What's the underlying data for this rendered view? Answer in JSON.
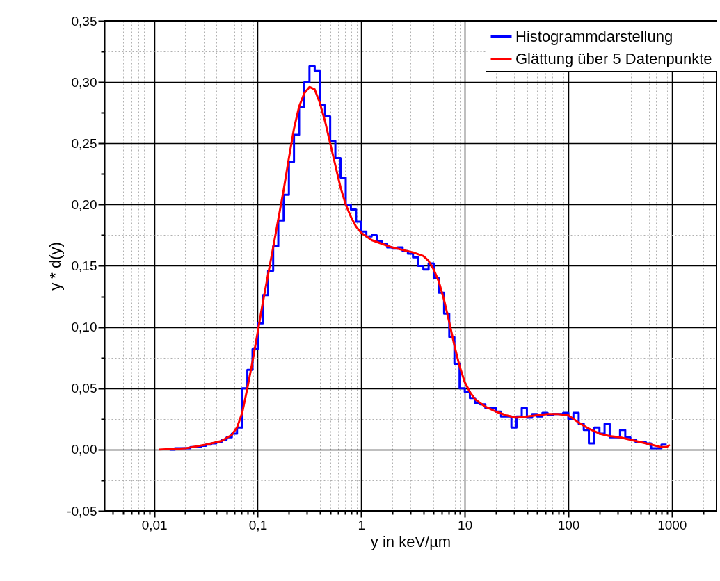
{
  "chart_data": {
    "type": "line",
    "xlabel": "y in keV/µm",
    "ylabel": "y * d(y)",
    "log": "x",
    "grid": true,
    "legend": "top right",
    "xlim": [
      0.0033,
      2700
    ],
    "ylim": [
      -0.05,
      0.35
    ],
    "xticks": [
      {
        "value": 0.004,
        "label": null
      },
      {
        "value": 0.005,
        "label": null
      },
      {
        "value": 0.006,
        "label": null
      },
      {
        "value": 0.007,
        "label": null
      },
      {
        "value": 0.008,
        "label": null
      },
      {
        "value": 0.009,
        "label": null
      },
      {
        "value": 0.01,
        "label": "0,01"
      },
      {
        "value": 0.02,
        "label": null
      },
      {
        "value": 0.03,
        "label": null
      },
      {
        "value": 0.04,
        "label": null
      },
      {
        "value": 0.05,
        "label": null
      },
      {
        "value": 0.06,
        "label": null
      },
      {
        "value": 0.07,
        "label": null
      },
      {
        "value": 0.08,
        "label": null
      },
      {
        "value": 0.09,
        "label": null
      },
      {
        "value": 0.1,
        "label": "0,1"
      },
      {
        "value": 0.2,
        "label": null
      },
      {
        "value": 0.3,
        "label": null
      },
      {
        "value": 0.4,
        "label": null
      },
      {
        "value": 0.5,
        "label": null
      },
      {
        "value": 0.6,
        "label": null
      },
      {
        "value": 0.7,
        "label": null
      },
      {
        "value": 0.8,
        "label": null
      },
      {
        "value": 0.9,
        "label": null
      },
      1,
      {
        "value": 2,
        "label": null
      },
      {
        "value": 3,
        "label": null
      },
      {
        "value": 4,
        "label": null
      },
      {
        "value": 5,
        "label": null
      },
      {
        "value": 6,
        "label": null
      },
      {
        "value": 7,
        "label": null
      },
      {
        "value": 8,
        "label": null
      },
      {
        "value": 9,
        "label": null
      },
      10,
      {
        "value": 20,
        "label": null
      },
      {
        "value": 30,
        "label": null
      },
      {
        "value": 40,
        "label": null
      },
      {
        "value": 50,
        "label": null
      },
      {
        "value": 60,
        "label": null
      },
      {
        "value": 70,
        "label": null
      },
      {
        "value": 80,
        "label": null
      },
      {
        "value": 90,
        "label": null
      },
      100,
      {
        "value": 200,
        "label": null
      },
      {
        "value": 300,
        "label": null
      },
      {
        "value": 400,
        "label": null
      },
      {
        "value": 500,
        "label": null
      },
      {
        "value": 600,
        "label": null
      },
      {
        "value": 700,
        "label": null
      },
      {
        "value": 800,
        "label": null
      },
      {
        "value": 900,
        "label": null
      },
      1000,
      {
        "value": 2000,
        "label": null
      }
    ],
    "yticks": [
      {
        "value": -0.05,
        "label": "-0,05"
      },
      {
        "value": -0.025,
        "label": null
      },
      {
        "value": 0,
        "label": "0,00"
      },
      {
        "value": 0.025,
        "label": null
      },
      {
        "value": 0.05,
        "label": "0,05"
      },
      {
        "value": 0.075,
        "label": null
      },
      {
        "value": 0.1,
        "label": "0,10"
      },
      {
        "value": 0.125,
        "label": null
      },
      {
        "value": 0.15,
        "label": "0,15"
      },
      {
        "value": 0.175,
        "label": null
      },
      {
        "value": 0.2,
        "label": "0,20"
      },
      {
        "value": 0.225,
        "label": null
      },
      {
        "value": 0.25,
        "label": "0,25"
      },
      {
        "value": 0.275,
        "label": null
      },
      {
        "value": 0.3,
        "label": "0,30"
      },
      {
        "value": 0.325,
        "label": null
      },
      {
        "value": 0.35,
        "label": "0,35"
      }
    ],
    "series": [
      {
        "name": "Histogrammdarstellung",
        "color": "#0000ff",
        "type": "step",
        "x": [
          0.0141,
          0.0158,
          0.0178,
          0.02,
          0.0224,
          0.0251,
          0.0282,
          0.0316,
          0.0355,
          0.0398,
          0.0447,
          0.0501,
          0.0562,
          0.0631,
          0.0708,
          0.0794,
          0.0891,
          0.1,
          0.112,
          0.126,
          0.141,
          0.158,
          0.178,
          0.2,
          0.224,
          0.251,
          0.282,
          0.316,
          0.355,
          0.398,
          0.447,
          0.501,
          0.562,
          0.631,
          0.708,
          0.794,
          0.891,
          1,
          1.12,
          1.26,
          1.41,
          1.58,
          1.78,
          2,
          2.24,
          2.51,
          2.82,
          3.16,
          3.55,
          3.98,
          4.47,
          5.01,
          5.62,
          6.31,
          7.08,
          7.94,
          8.91,
          10,
          11.2,
          12.6,
          14.1,
          15.8,
          17.8,
          20,
          22.4,
          25.1,
          28.2,
          31.6,
          35.5,
          39.8,
          44.7,
          50.1,
          56.2,
          63.1,
          70.8,
          79.4,
          89.1,
          100,
          112,
          126,
          141,
          158,
          178,
          200,
          224,
          251,
          282,
          316,
          355,
          398,
          447,
          501,
          562,
          631,
          708,
          794,
          891
        ],
        "values": [
          0,
          0.001,
          0.001,
          0.001,
          0.002,
          0.002,
          0.003,
          0.004,
          0.005,
          0.006,
          0.008,
          0.01,
          0.013,
          0.018,
          0.05,
          0.065,
          0.082,
          0.103,
          0.126,
          0.146,
          0.166,
          0.187,
          0.208,
          0.235,
          0.257,
          0.28,
          0.3,
          0.313,
          0.309,
          0.281,
          0.272,
          0.252,
          0.238,
          0.222,
          0.2,
          0.196,
          0.186,
          0.178,
          0.174,
          0.175,
          0.17,
          0.168,
          0.165,
          0.164,
          0.165,
          0.162,
          0.16,
          0.157,
          0.15,
          0.147,
          0.152,
          0.14,
          0.128,
          0.111,
          0.092,
          0.07,
          0.05,
          0.047,
          0.042,
          0.038,
          0.037,
          0.034,
          0.034,
          0.031,
          0.027,
          0.027,
          0.018,
          0.027,
          0.034,
          0.026,
          0.029,
          0.027,
          0.03,
          0.028,
          0.029,
          0.029,
          0.03,
          0.025,
          0.03,
          0.021,
          0.016,
          0.005,
          0.018,
          0.013,
          0.021,
          0.01,
          0.01,
          0.016,
          0.01,
          0.008,
          0.006,
          0.006,
          0.005,
          0.001,
          0.001,
          0.004,
          0.004
        ]
      },
      {
        "name": "Glättung über 5 Datenpunkte",
        "color": "#ff0000",
        "type": "line",
        "x": [
          0.0112,
          0.02,
          0.0316,
          0.0447,
          0.0562,
          0.0631,
          0.0708,
          0.0794,
          0.0891,
          0.1,
          0.112,
          0.126,
          0.141,
          0.158,
          0.178,
          0.2,
          0.224,
          0.251,
          0.282,
          0.316,
          0.355,
          0.398,
          0.447,
          0.501,
          0.562,
          0.631,
          0.708,
          0.794,
          0.891,
          1,
          1.26,
          1.58,
          2,
          2.51,
          3.16,
          3.98,
          4.47,
          5.01,
          5.62,
          6.31,
          7.08,
          7.94,
          8.91,
          10,
          11.2,
          12.6,
          15.8,
          20,
          25.1,
          31.6,
          39.8,
          50.1,
          63.1,
          79.4,
          100,
          126,
          158,
          200,
          251,
          316,
          398,
          501,
          631,
          794,
          891,
          955
        ],
        "values": [
          0,
          0.001,
          0.004,
          0.007,
          0.012,
          0.018,
          0.03,
          0.05,
          0.072,
          0.096,
          0.12,
          0.143,
          0.165,
          0.188,
          0.212,
          0.238,
          0.262,
          0.28,
          0.291,
          0.296,
          0.294,
          0.283,
          0.268,
          0.25,
          0.232,
          0.214,
          0.2,
          0.19,
          0.182,
          0.177,
          0.171,
          0.168,
          0.165,
          0.163,
          0.161,
          0.158,
          0.154,
          0.147,
          0.137,
          0.122,
          0.104,
          0.085,
          0.068,
          0.055,
          0.047,
          0.041,
          0.035,
          0.031,
          0.028,
          0.026,
          0.027,
          0.028,
          0.029,
          0.029,
          0.028,
          0.022,
          0.017,
          0.013,
          0.011,
          0.01,
          0.008,
          0.006,
          0.004,
          0.002,
          0.002,
          0.004
        ]
      }
    ]
  }
}
